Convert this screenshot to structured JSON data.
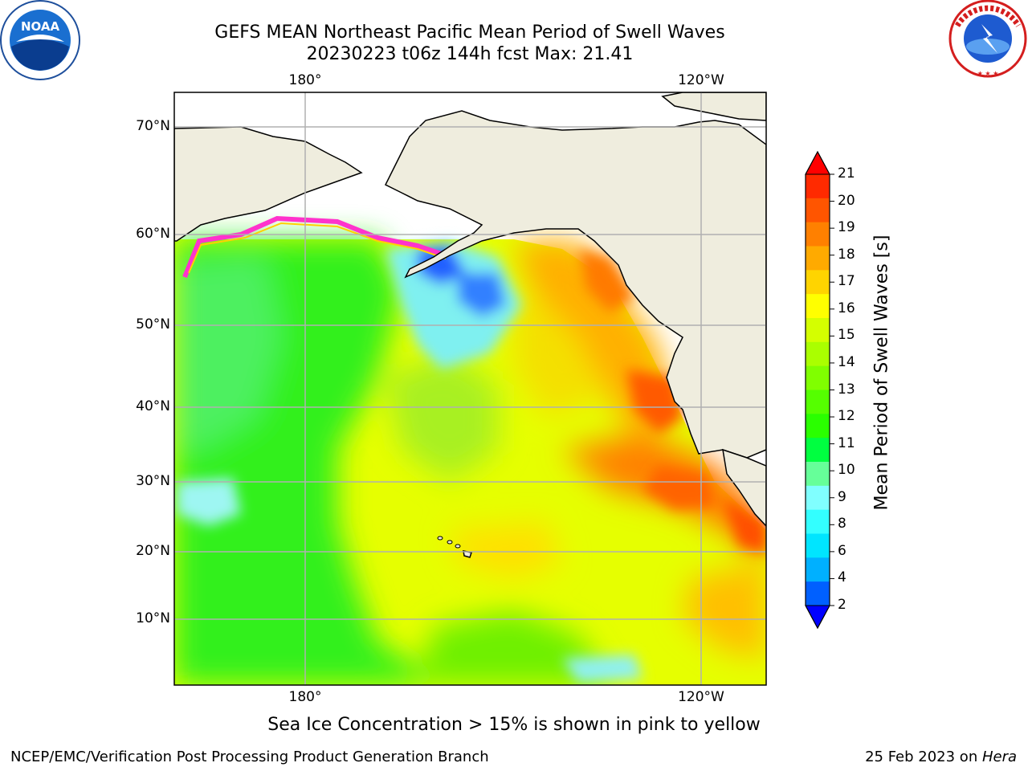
{
  "title_line1": "GEFS MEAN Northeast Pacific Mean Period of Swell Waves",
  "title_line2": "20230223 t06z 144h fcst   Max: 21.41",
  "lon_ticks": [
    "180°",
    "120°W"
  ],
  "lat_ticks": [
    "70°N",
    "60°N",
    "50°N",
    "40°N",
    "30°N",
    "20°N",
    "10°N"
  ],
  "colorbar": {
    "label": "Mean Period of Swell Waves [s]",
    "ticks": [
      "21",
      "20",
      "19",
      "18",
      "17",
      "16",
      "15",
      "14",
      "13",
      "12",
      "11",
      "10",
      "9",
      "8",
      "6",
      "4",
      "2"
    ],
    "colors": [
      "#ff2a00",
      "#ff5500",
      "#ff8000",
      "#ffaa00",
      "#ffd400",
      "#ffff00",
      "#d4ff00",
      "#aaff00",
      "#80ff00",
      "#55ff00",
      "#2aff00",
      "#00ff40",
      "#66ff99",
      "#80ffff",
      "#33ffff",
      "#00e5ff",
      "#00b0ff",
      "#0060ff"
    ],
    "over_color": "#ff0000",
    "under_color": "#0000ff"
  },
  "note": "Sea Ice Concentration > 15% is shown in pink to yellow",
  "footer_left": "NCEP/EMC/Verification Post Processing Product Generation Branch",
  "footer_date": "25 Feb 2023 on ",
  "footer_machine": "Hera",
  "logos": {
    "left": "NOAA",
    "right": "NATIONAL WEATHER SERVICE"
  },
  "map_colors": {
    "land": "#efedde",
    "grid": "#b0b0b0"
  }
}
